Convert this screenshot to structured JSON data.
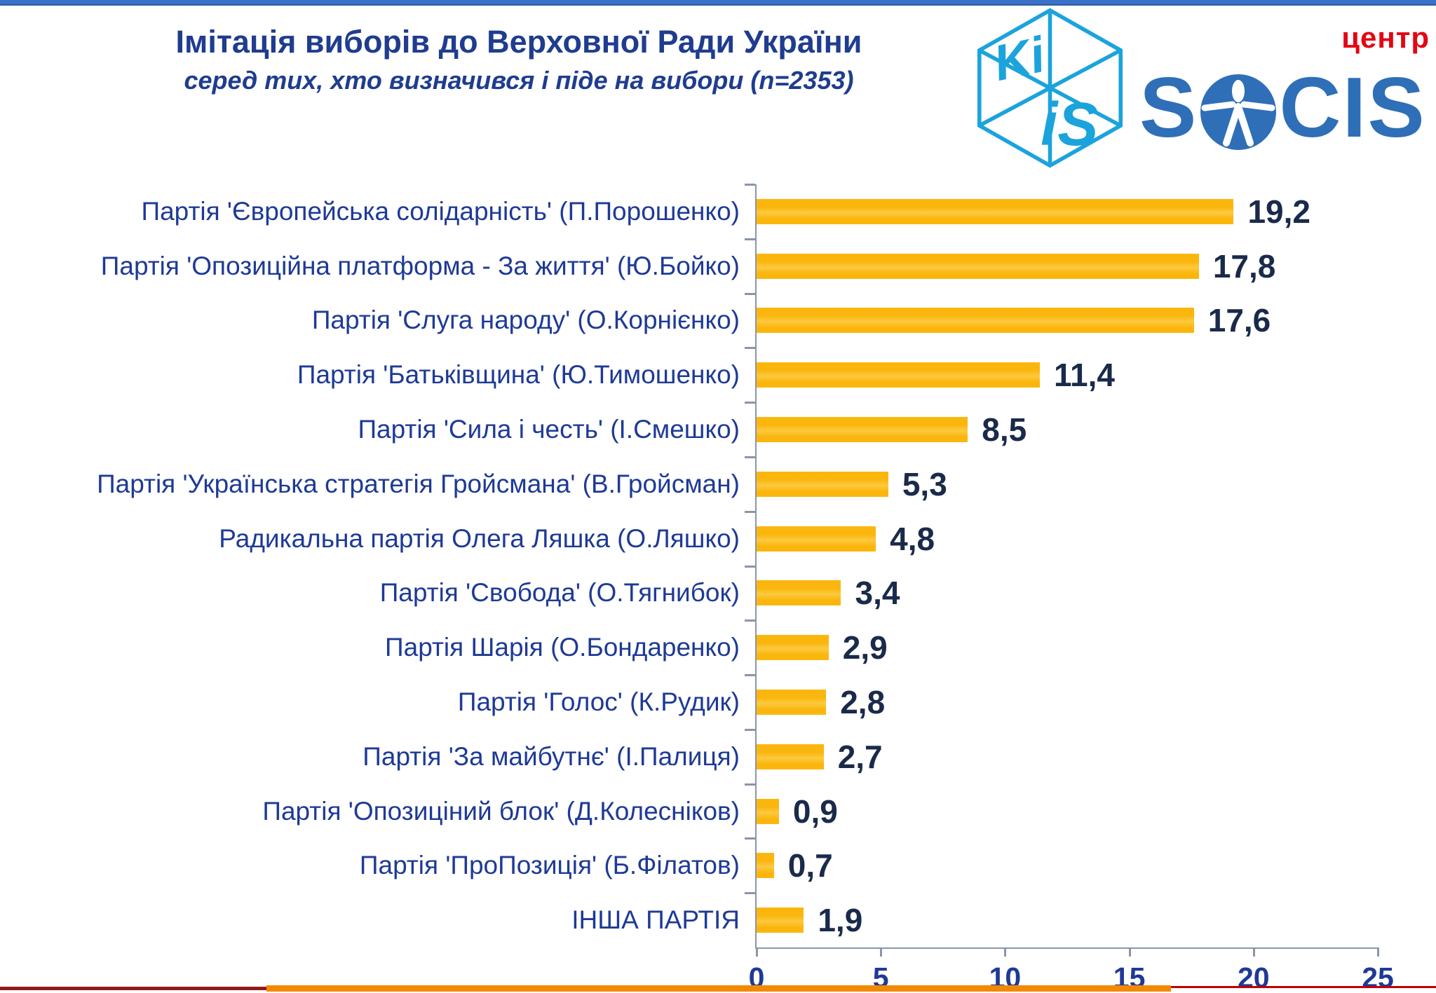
{
  "header": {
    "title": "Імітація виборів до Верховної Ради України",
    "subtitle": "серед тих, хто визначився і піде на вибори (n=2353)"
  },
  "logos": {
    "kiis": {
      "text_top": "Ki",
      "text_bottom": "iS"
    },
    "socis": {
      "prefix": "S",
      "suffix": "CIS",
      "tag": "центр"
    }
  },
  "chart_data": {
    "type": "bar",
    "orientation": "horizontal",
    "title": "Імітація виборів до Верховної Ради України",
    "subtitle": "серед тих, хто визначився і піде на вибори (n=2353)",
    "categories": [
      "Партія 'Європейська солідарність' (П.Порошенко)",
      "Партія 'Опозиційна платформа - За життя' (Ю.Бойко)",
      "Партія 'Слуга народу' (О.Корнієнко)",
      "Партія 'Батьківщина' (Ю.Тимошенко)",
      "Партія 'Сила і честь' (І.Смешко)",
      "Партія 'Українська стратегія Гройсмана' (В.Гройсман)",
      "Радикальна партія Олега Ляшка (О.Ляшко)",
      "Партія 'Свобода' (О.Тягнибок)",
      "Партія Шарія (О.Бондаренко)",
      "Партія 'Голос' (К.Рудик)",
      "Партія 'За майбутнє' (І.Палиця)",
      "Партія 'Опозиціний блок' (Д.Колесніков)",
      "Партія 'ПроПозиція' (Б.Філатов)",
      "ІНША ПАРТІЯ"
    ],
    "values": [
      19.2,
      17.8,
      17.6,
      11.4,
      8.5,
      5.3,
      4.8,
      3.4,
      2.9,
      2.8,
      2.7,
      0.9,
      0.7,
      1.9
    ],
    "value_labels": [
      "19,2",
      "17,8",
      "17,6",
      "11,4",
      "8,5",
      "5,3",
      "4,8",
      "3,4",
      "2,9",
      "2,8",
      "2,7",
      "0,9",
      "0,7",
      "1,9"
    ],
    "xlim": [
      0,
      25
    ],
    "x_ticks": [
      0,
      5,
      10,
      15,
      20,
      25
    ],
    "x_tick_labels": [
      "0",
      "5",
      "10",
      "15",
      "20",
      "25"
    ],
    "grid": "off",
    "legend": "none",
    "bar_color": "#FCBA13",
    "category_label_color": "#1E3A96",
    "value_label_color": "#1A2A4A",
    "axis_color": "#8A96A8"
  }
}
